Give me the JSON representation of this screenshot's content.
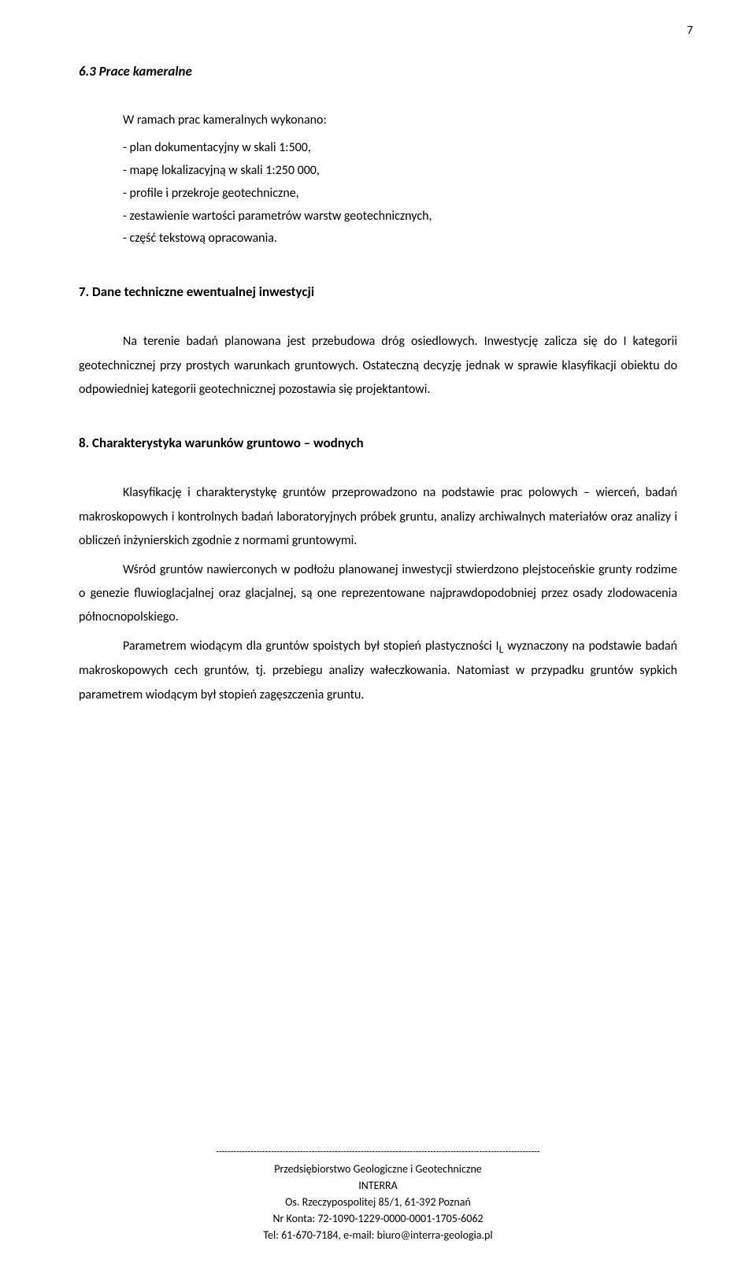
{
  "page_number": "7",
  "section_6_3": {
    "title": "6.3 Prace kameralne",
    "intro": "W ramach prac kameralnych wykonano:",
    "items": [
      "- plan dokumentacyjny w skali 1:500,",
      "- mapę lokalizacyjną w skali 1:250 000,",
      "- profile i przekroje geotechniczne,",
      "- zestawienie wartości parametrów warstw geotechnicznych,",
      "- część tekstową opracowania."
    ]
  },
  "section_7": {
    "title": "7. Dane techniczne ewentualnej inwestycji",
    "body": "Na terenie badań planowana jest przebudowa dróg osiedlowych. Inwestycję zalicza się do I kategorii geotechnicznej przy prostych warunkach gruntowych. Ostateczną decyzję jednak w sprawie klasyfikacji obiektu do odpowiedniej kategorii geotechnicznej pozostawia się projektantowi."
  },
  "section_8": {
    "title": "8. Charakterystyka warunków gruntowo – wodnych",
    "para1": "Klasyfikację i charakterystykę gruntów przeprowadzono na podstawie prac polowych – wierceń, badań makroskopowych i kontrolnych badań laboratoryjnych próbek gruntu, analizy archiwalnych materiałów oraz analizy i obliczeń inżynierskich zgodnie z normami gruntowymi.",
    "para2": "Wśród gruntów nawierconych w podłożu planowanej inwestycji stwierdzono plejstoceńskie grunty rodzime o genezie fluwioglacjalnej oraz glacjalnej, są one reprezentowane najprawdopodobniej przez osady zlodowacenia północnopolskiego.",
    "para3_part1": "Parametrem wiodącym dla gruntów spoistych był stopień plastyczności I",
    "para3_sub": "L",
    "para3_part2": " wyznaczony na podstawie badań makroskopowych cech gruntów, tj. przebiegu analizy wałeczkowania. Natomiast w przypadku gruntów sypkich parametrem wiodącym był stopień zagęszczenia gruntu."
  },
  "footer": {
    "divider": "----------------------------------------------------------------------------------------------------------------",
    "line1": "Przedsiębiorstwo Geologiczne i Geotechniczne",
    "line2": "INTERRA",
    "line3": "Os. Rzeczypospolitej 85/1, 61-392 Poznań",
    "line4": "Nr Konta: 72-1090-1229-0000-0001-1705-6062",
    "line5": "Tel: 61-670-7184, e-mail: biuro@interra-geologia.pl"
  }
}
